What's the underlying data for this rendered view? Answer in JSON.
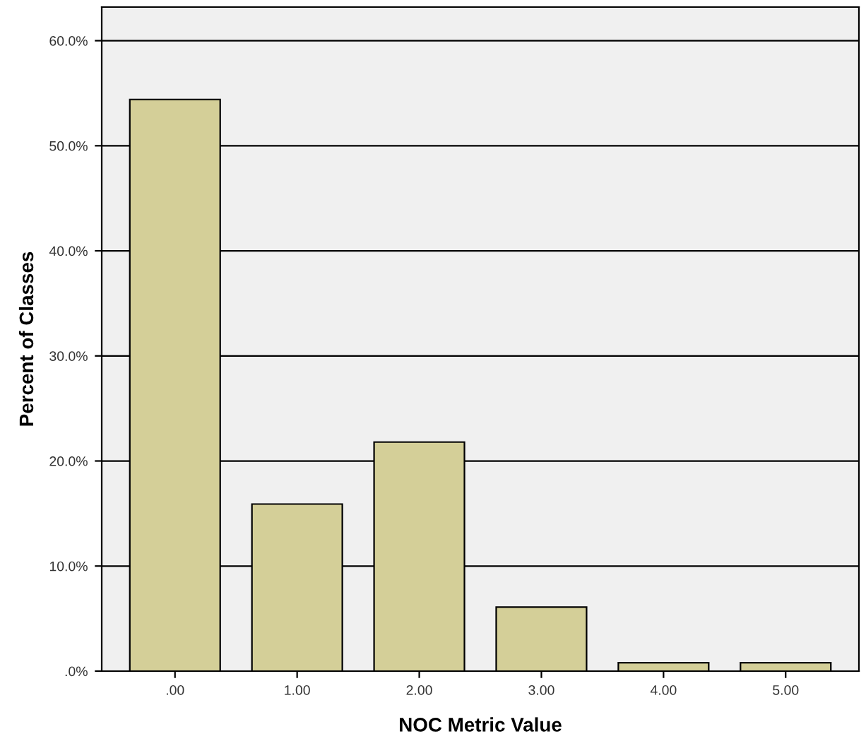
{
  "chart_data": {
    "type": "bar",
    "xlabel": "NOC Metric Value",
    "ylabel": "Percent of Classes",
    "categories": [
      ".00",
      "1.00",
      "2.00",
      "3.00",
      "4.00",
      "5.00"
    ],
    "values": [
      54.4,
      15.9,
      21.8,
      6.1,
      0.8,
      0.8
    ],
    "color": "#d4cf98",
    "ylim": [
      0,
      63.2
    ],
    "yticks": [
      {
        "value": 0,
        "label": ".0%"
      },
      {
        "value": 10,
        "label": "10.0%"
      },
      {
        "value": 20,
        "label": "20.0%"
      },
      {
        "value": 30,
        "label": "30.0%"
      },
      {
        "value": 40,
        "label": "40.0%"
      },
      {
        "value": 50,
        "label": "50.0%"
      },
      {
        "value": 60,
        "label": "60.0%"
      }
    ],
    "grid": "y"
  }
}
